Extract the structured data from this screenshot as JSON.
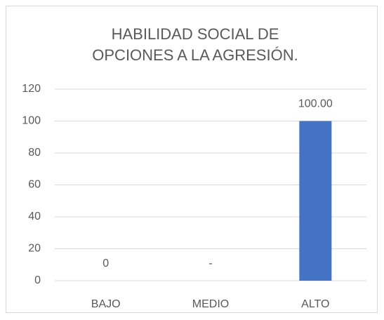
{
  "chart_data": {
    "type": "bar",
    "title": "HABILIDAD SOCIAL DE OPCIONES A LA AGRESIÓN.",
    "categories": [
      "BAJO",
      "MEDIO",
      "ALTO"
    ],
    "values": [
      0,
      0,
      100
    ],
    "value_labels": [
      "0",
      "-",
      "100.00"
    ],
    "color": "#4472c4",
    "ylim": [
      0,
      120
    ],
    "yticks": [
      0,
      20,
      40,
      60,
      80,
      100,
      120
    ],
    "grid": true
  }
}
